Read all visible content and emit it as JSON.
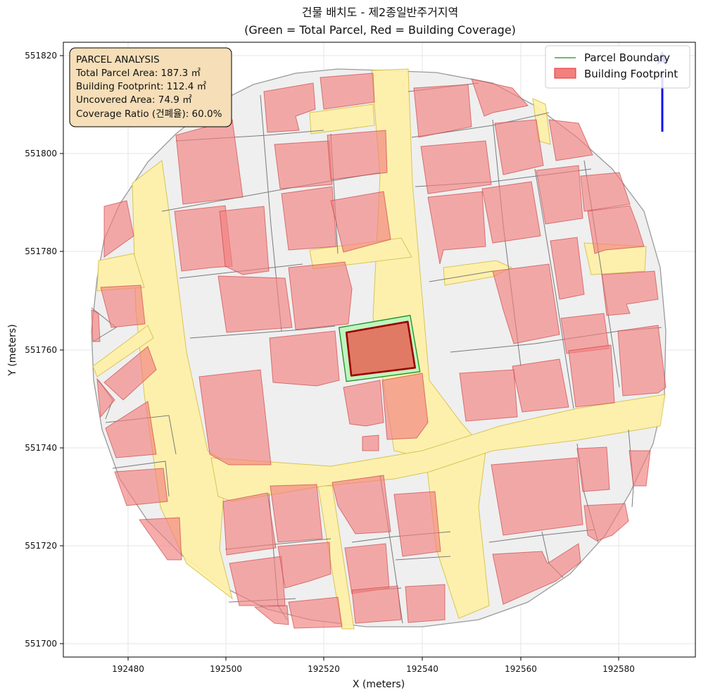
{
  "title": {
    "line1": "건물 배치도 - 제2종일반주거지역",
    "line2": "(Green = Total Parcel, Red = Building Coverage)"
  },
  "axes": {
    "xlabel": "X (meters)",
    "ylabel": "Y (meters)"
  },
  "info_box": {
    "heading": "PARCEL ANALYSIS",
    "parcel_area": "Total Parcel Area: 187.3 ㎡",
    "footprint": "Building Footprint: 112.4 ㎡",
    "uncovered": "Uncovered Area: 74.9 ㎡",
    "coverage": "Coverage Ratio (건폐율): 60.0%"
  },
  "legend": {
    "parcel": "Parcel Boundary",
    "building": "Building Footprint"
  },
  "colors": {
    "parcel_edge": "#1e8f1e",
    "parcel_fill": "#bff5bf",
    "building_fill": "#f28080",
    "building_edge": "#e8302a",
    "target_building_fill": "#e07a64",
    "target_building_edge": "#9b0000",
    "road_fill": "#fff1a8",
    "neighborhood_fill": "#efefef",
    "north_arrow": "#1010ee",
    "info_box_bg": "#f5deb8"
  },
  "north_arrow_icon": "north-arrow-icon",
  "chart_data": {
    "type": "map",
    "xlabel": "X (meters)",
    "ylabel": "Y (meters)",
    "xlim": [
      192467,
      192596
    ],
    "ylim": [
      551697,
      551823
    ],
    "xticks": [
      192480,
      192500,
      192520,
      192540,
      192560,
      192580
    ],
    "yticks": [
      551700,
      551720,
      551740,
      551760,
      551780,
      551800,
      551820
    ],
    "grid": true,
    "legend_placement": "top-right",
    "info_box_placement": "top-left",
    "target_parcel": [
      [
        192523,
        551764.5
      ],
      [
        192537.5,
        551767
      ],
      [
        192539.5,
        551755.5
      ],
      [
        192524.5,
        551753.5
      ]
    ],
    "target_building": [
      [
        192524.5,
        551763.5
      ],
      [
        192537,
        551765.7
      ],
      [
        192538.5,
        551756.3
      ],
      [
        192525.5,
        551754.7
      ]
    ],
    "area_m2": {
      "total_parcel": 187.3,
      "building_footprint": 112.4,
      "uncovered": 74.9
    },
    "coverage_ratio_percent": 60.0
  }
}
